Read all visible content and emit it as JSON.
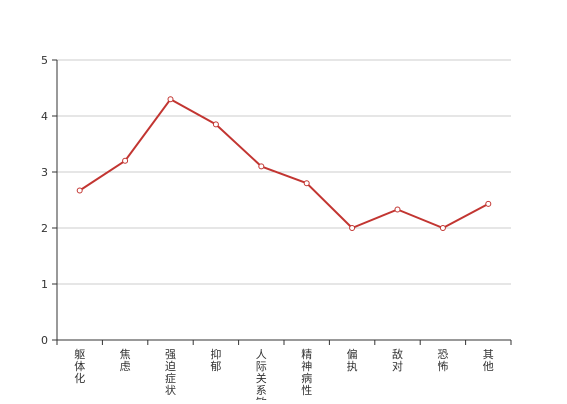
{
  "chart_data": {
    "type": "line",
    "categories": [
      "躯体化",
      "焦虑",
      "强迫症状",
      "抑郁",
      "人际关系敏感",
      "精神病性",
      "偏执",
      "敌对",
      "恐怖",
      "其他"
    ],
    "series": [
      {
        "values": [
          2.67,
          3.2,
          4.3,
          3.85,
          3.1,
          2.8,
          2.0,
          2.33,
          2.0,
          2.43
        ],
        "color": "#c23531"
      }
    ],
    "ylim": [
      0,
      5
    ],
    "yticks": [
      0,
      1,
      2,
      3,
      4,
      5
    ],
    "grid": true,
    "title": "",
    "xlabel": "",
    "ylabel": ""
  }
}
